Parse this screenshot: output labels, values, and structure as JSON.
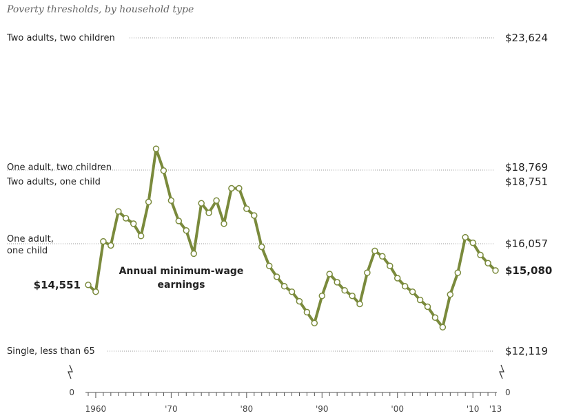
{
  "chart_data": {
    "type": "line",
    "subtitle": "Poverty thresholds, by household type",
    "series": [
      {
        "name": "Annual minimum-wage earnings",
        "color": "#7a8a3c",
        "x": [
          1959,
          1960,
          1961,
          1962,
          1963,
          1964,
          1965,
          1966,
          1967,
          1968,
          1969,
          1970,
          1971,
          1972,
          1973,
          1974,
          1975,
          1976,
          1977,
          1978,
          1979,
          1980,
          1981,
          1982,
          1983,
          1984,
          1985,
          1986,
          1987,
          1988,
          1989,
          1990,
          1991,
          1992,
          1993,
          1994,
          1995,
          1996,
          1997,
          1998,
          1999,
          2000,
          2001,
          2002,
          2003,
          2004,
          2005,
          2006,
          2007,
          2008,
          2009,
          2010,
          2011,
          2012,
          2013
        ],
        "y": [
          14551,
          14300,
          16150,
          16000,
          17250,
          17000,
          16800,
          16350,
          17600,
          19550,
          18750,
          17650,
          16900,
          16550,
          15700,
          17550,
          17200,
          17650,
          16800,
          18100,
          18100,
          17350,
          17100,
          15950,
          15250,
          14850,
          14500,
          14300,
          13950,
          13550,
          13150,
          14150,
          14950,
          14650,
          14350,
          14150,
          13850,
          15000,
          15800,
          15600,
          15250,
          14800,
          14500,
          14300,
          14000,
          13750,
          13350,
          13000,
          14200,
          15000,
          16300,
          16100,
          15650,
          15350,
          15080
        ]
      }
    ],
    "start_label": "$14,551",
    "end_label": "$15,080",
    "series_label_line1": "Annual minimum-wage",
    "series_label_line2": "earnings",
    "thresholds": [
      {
        "label_lines": [
          "Two adults, two children"
        ],
        "value": 23624,
        "value_label": "$23,624"
      },
      {
        "label_lines": [
          "One adult, two children"
        ],
        "value": 18769,
        "value_label": "$18,769"
      },
      {
        "label_lines": [
          "Two adults, one child"
        ],
        "value": 18751,
        "value_label": "$18,751"
      },
      {
        "label_lines": [
          "One adult,",
          "one child"
        ],
        "value": 16057,
        "value_label": "$16,057"
      },
      {
        "label_lines": [
          "Single, less than 65"
        ],
        "value": 12119,
        "value_label": "$12,119"
      }
    ],
    "x_tick_labels": [
      {
        "year": 1960,
        "label": "1960"
      },
      {
        "year": 1970,
        "label": "'70"
      },
      {
        "year": 1980,
        "label": "'80"
      },
      {
        "year": 1990,
        "label": "'90"
      },
      {
        "year": 2000,
        "label": "'00"
      },
      {
        "year": 2010,
        "label": "'10"
      },
      {
        "year": 2013,
        "label": "'13"
      }
    ],
    "xlim": [
      1959,
      2013
    ],
    "y_axis_zero_label": "0",
    "y_axis_break": true,
    "grid": false
  }
}
